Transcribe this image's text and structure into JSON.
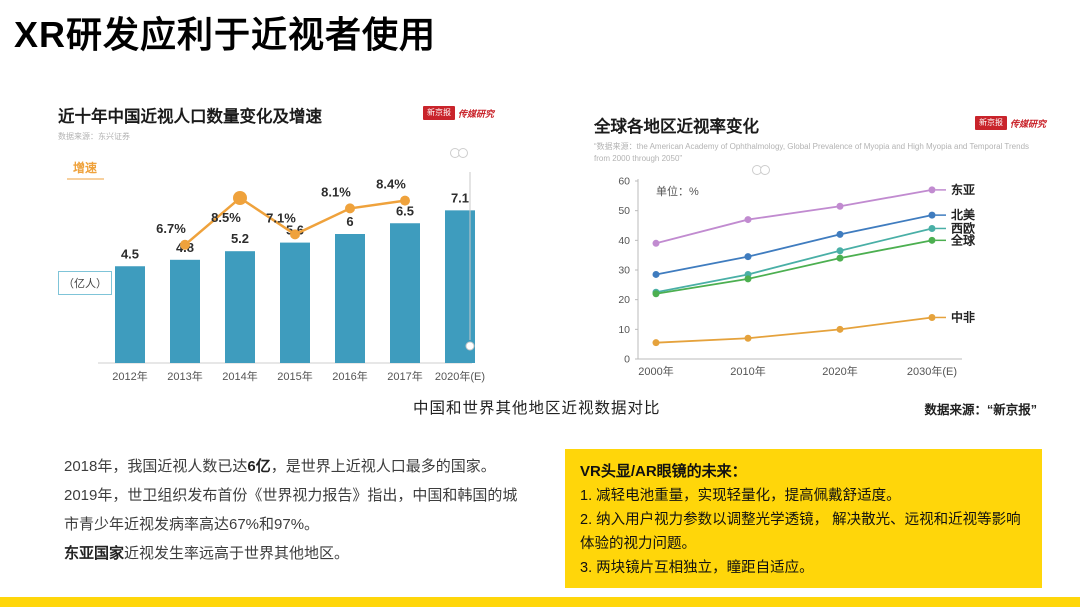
{
  "slide": {
    "title": "XR研发应利于近视者使用",
    "caption": "中国和世界其他地区近视数据对比",
    "caption_source": "数据来源：“新京报”"
  },
  "brand": {
    "badge": "新京报",
    "badge2": "传媒研究",
    "badge_color": "#C9242B"
  },
  "colors": {
    "accent_yellow": "#FFD60A",
    "badge_red": "#C9242B",
    "bar_teal": "#3E9CBE",
    "growth_orange": "#EFA23C"
  },
  "chart_data": [
    {
      "type": "bar",
      "title": "近十年中国近视人口数量变化及增速",
      "source": "数据来源：东兴证券",
      "unit_label": "（亿人）",
      "categories": [
        "2012年",
        "2013年",
        "2014年",
        "2015年",
        "2016年",
        "2017年",
        "2020年(E)"
      ],
      "values": [
        4.5,
        4.8,
        5.2,
        5.6,
        6,
        6.5,
        7.1
      ],
      "bar_color": "#3E9CBE",
      "ylim": [
        0,
        8
      ],
      "line_series": {
        "name": "增速",
        "color": "#EFA23C",
        "categories": [
          "2013年",
          "2014年",
          "2015年",
          "2016年",
          "2017年"
        ],
        "values_pct": [
          6.7,
          8.5,
          7.1,
          8.1,
          8.4
        ]
      }
    },
    {
      "type": "line",
      "title": "全球各地区近视率变化",
      "source": "“数据来源：the American Academy of Ophthalmology, Global Prevalence of Myopia and High Myopia and Temporal Trends from 2000 through 2050”",
      "unit": "单位：%",
      "x": [
        "2000年",
        "2010年",
        "2020年",
        "2030年(E)"
      ],
      "ylim": [
        0,
        60
      ],
      "yticks": [
        0,
        10,
        20,
        30,
        40,
        50,
        60
      ],
      "legend_position": "right-of-line-ends",
      "series": [
        {
          "name": "东亚",
          "color": "#C18BD0",
          "values": [
            39,
            47,
            51.5,
            57
          ]
        },
        {
          "name": "北美",
          "color": "#3F7CBF",
          "values": [
            28.5,
            34.5,
            42,
            48.5
          ]
        },
        {
          "name": "西欧",
          "color": "#49AFA6",
          "values": [
            22.5,
            28.5,
            36.5,
            44
          ]
        },
        {
          "name": "全球",
          "color": "#4CAF50",
          "values": [
            22,
            27,
            34,
            40
          ]
        },
        {
          "name": "中非",
          "color": "#E5A23C",
          "values": [
            5.5,
            7,
            10,
            14
          ]
        }
      ]
    }
  ],
  "body_text": {
    "p1_pre": "2018年，我国近视人数已达",
    "p1_bold": "6亿",
    "p1_post": "，是世界上近视人口最多的国家。",
    "p2": "2019年，世卫组织发布首份《世界视力报告》指出，中国和韩国的城市青少年近视发病率高达67%和97%。",
    "p3_bold": "东亚国家",
    "p3_post": "近视发生率远高于世界其他地区。"
  },
  "future_box": {
    "title": "VR头显/AR眼镜的未来：",
    "items": [
      "1. 减轻电池重量，实现轻量化，提高佩戴舒适度。",
      "2. 纳入用户视力参数以调整光学透镜， 解决散光、远视和近视等影响体验的视力问题。",
      "3. 两块镜片互相独立，瞳距自适应。"
    ]
  }
}
